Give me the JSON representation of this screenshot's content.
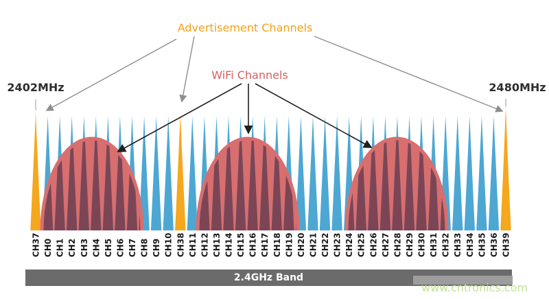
{
  "labels": {
    "advertisement": "Advertisement Channels",
    "wifi": "WiFi Channels",
    "freq_start": "2402MHz",
    "freq_end": "2480MHz",
    "band": "2.4GHz Band",
    "watermark": "www.cntronics.com"
  },
  "colors": {
    "advertisement_channel": "#F5A71D",
    "data_channel": "#4DA7D3",
    "wifi_fill": "#D96E6E",
    "wifi_over_channel": "#7C4556",
    "channel_label": "#1A1A1A",
    "arrow_gray": "#8E8E8E",
    "arrow_black": "#1F1F1F",
    "tick_line": "#AAAAAA",
    "band_bar": "#6B6B6B",
    "band_overlay": "#9D9D9D",
    "watermark": "#C3E195"
  },
  "chart_data": {
    "type": "area",
    "title": "BLE channels vs WiFi channels in the 2.4GHz band",
    "freq_range_mhz": [
      2402,
      2480
    ],
    "band_label": "2.4GHz Band",
    "advertisement_channels": [
      "CH37",
      "CH38",
      "CH39"
    ],
    "wifi_humps": [
      {
        "spans_channels": [
          "CH0",
          "CH8"
        ],
        "apex_between": [
          "CH3",
          "CH4"
        ]
      },
      {
        "spans_channels": [
          "CH11",
          "CH19"
        ],
        "apex_between": [
          "CH15",
          "CH16"
        ]
      },
      {
        "spans_channels": [
          "CH24",
          "CH31"
        ],
        "apex_between": [
          "CH27",
          "CH28"
        ]
      }
    ],
    "channels": [
      {
        "name": "CH37",
        "type": "advertisement"
      },
      {
        "name": "CH0",
        "type": "data"
      },
      {
        "name": "CH1",
        "type": "data"
      },
      {
        "name": "CH2",
        "type": "data"
      },
      {
        "name": "CH3",
        "type": "data"
      },
      {
        "name": "CH4",
        "type": "data"
      },
      {
        "name": "CH5",
        "type": "data"
      },
      {
        "name": "CH6",
        "type": "data"
      },
      {
        "name": "CH7",
        "type": "data"
      },
      {
        "name": "CH8",
        "type": "data"
      },
      {
        "name": "CH9",
        "type": "data"
      },
      {
        "name": "CH10",
        "type": "data"
      },
      {
        "name": "CH38",
        "type": "advertisement"
      },
      {
        "name": "CH11",
        "type": "data"
      },
      {
        "name": "CH12",
        "type": "data"
      },
      {
        "name": "CH13",
        "type": "data"
      },
      {
        "name": "CH14",
        "type": "data"
      },
      {
        "name": "CH15",
        "type": "data"
      },
      {
        "name": "CH16",
        "type": "data"
      },
      {
        "name": "CH17",
        "type": "data"
      },
      {
        "name": "CH18",
        "type": "data"
      },
      {
        "name": "CH19",
        "type": "data"
      },
      {
        "name": "CH20",
        "type": "data"
      },
      {
        "name": "CH21",
        "type": "data"
      },
      {
        "name": "CH22",
        "type": "data"
      },
      {
        "name": "CH23",
        "type": "data"
      },
      {
        "name": "CH24",
        "type": "data"
      },
      {
        "name": "CH25",
        "type": "data"
      },
      {
        "name": "CH26",
        "type": "data"
      },
      {
        "name": "CH27",
        "type": "data"
      },
      {
        "name": "CH28",
        "type": "data"
      },
      {
        "name": "CH29",
        "type": "data"
      },
      {
        "name": "CH30",
        "type": "data"
      },
      {
        "name": "CH31",
        "type": "data"
      },
      {
        "name": "CH32",
        "type": "data"
      },
      {
        "name": "CH33",
        "type": "data"
      },
      {
        "name": "CH34",
        "type": "data"
      },
      {
        "name": "CH35",
        "type": "data"
      },
      {
        "name": "CH36",
        "type": "data"
      },
      {
        "name": "CH39",
        "type": "advertisement"
      }
    ]
  }
}
